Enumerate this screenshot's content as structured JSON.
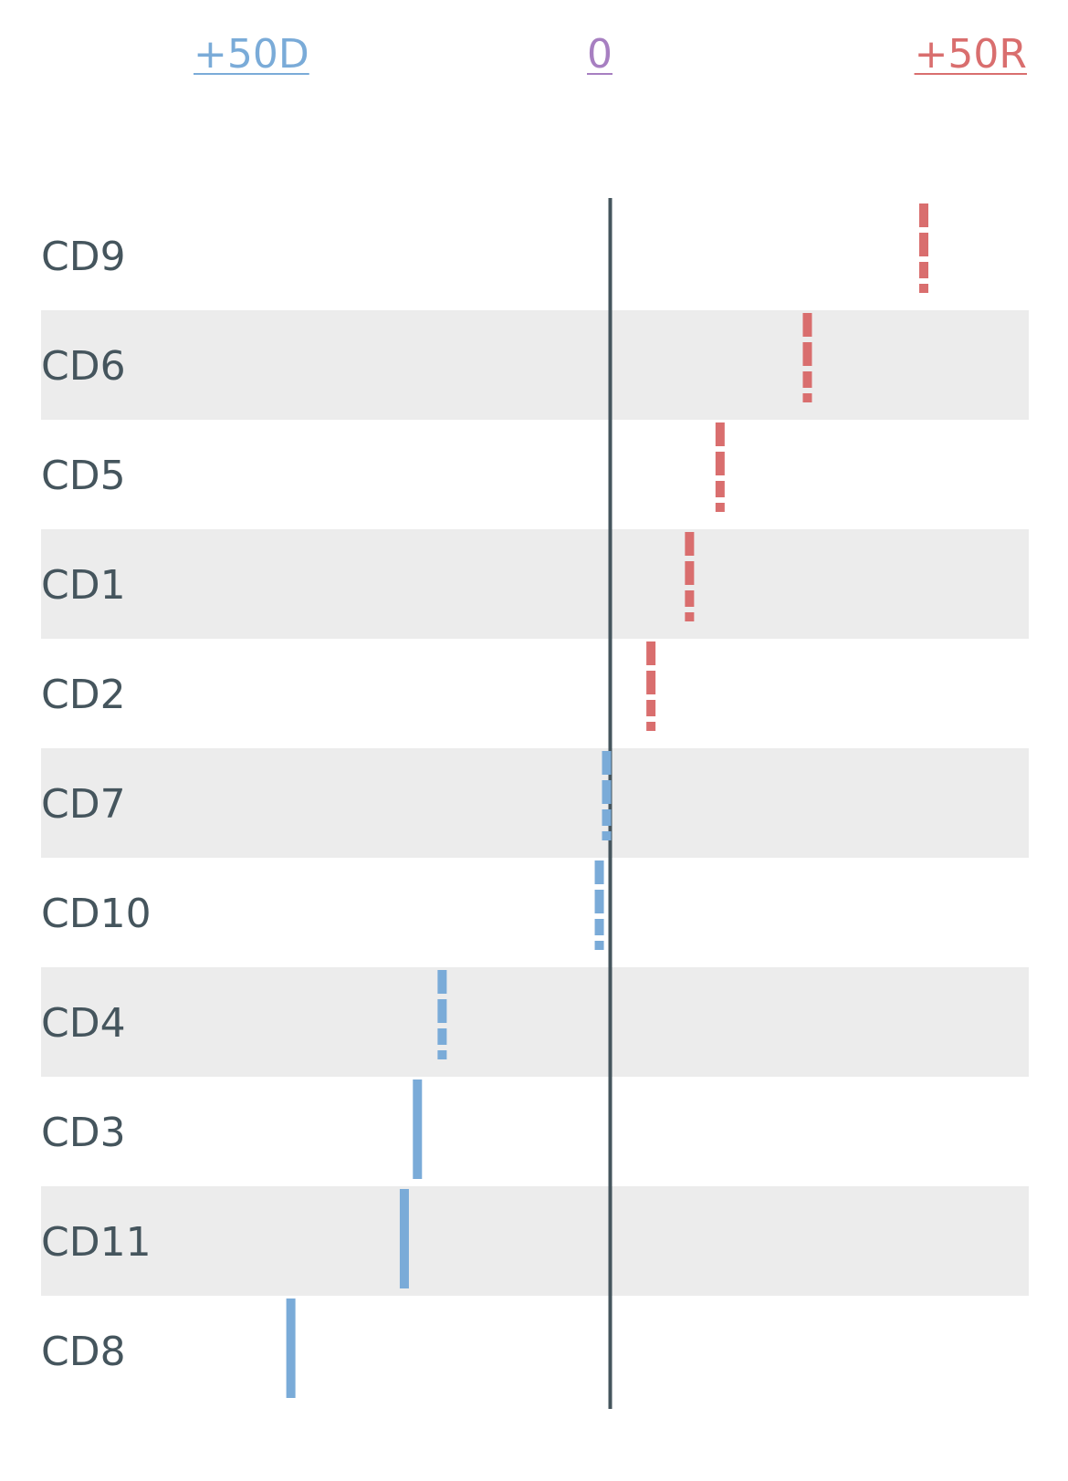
{
  "chart_data": {
    "type": "dot-strip",
    "axis": {
      "left_label": "+50D",
      "center_label": "0",
      "right_label": "+50R",
      "xlim": [
        -50,
        50
      ]
    },
    "rows": [
      {
        "name": "CD9",
        "value": 43.1,
        "style": "dashed"
      },
      {
        "name": "CD6",
        "value": 27.1,
        "style": "dashed"
      },
      {
        "name": "CD5",
        "value": 15.1,
        "style": "dashed"
      },
      {
        "name": "CD1",
        "value": 10.9,
        "style": "dashed"
      },
      {
        "name": "CD2",
        "value": 5.6,
        "style": "dashed"
      },
      {
        "name": "CD7",
        "value": -0.5,
        "style": "dashed"
      },
      {
        "name": "CD10",
        "value": -1.5,
        "style": "dashed"
      },
      {
        "name": "CD4",
        "value": -23.1,
        "style": "dashed"
      },
      {
        "name": "CD3",
        "value": -26.5,
        "style": "solid"
      },
      {
        "name": "CD11",
        "value": -28.3,
        "style": "solid"
      },
      {
        "name": "CD8",
        "value": -43.9,
        "style": "solid"
      }
    ],
    "colors": {
      "dem": "#7aabd8",
      "rep": "#d96e6e",
      "center": "#a77fc1",
      "axis_line": "#45555d",
      "stripe": "#ececec",
      "label": "#45555d"
    }
  }
}
